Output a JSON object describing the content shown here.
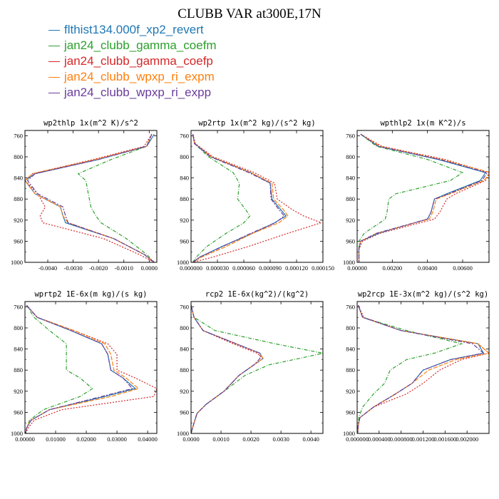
{
  "figure_title": "CLUBB VAR at300E,17N",
  "legend": [
    {
      "label": "flthist134.000f_xp2_revert",
      "color": "#1f77b4"
    },
    {
      "label": "jan24_clubb_gamma_coefm",
      "color": "#2ca02c"
    },
    {
      "label": "jan24_clubb_gamma_coefp",
      "color": "#d62728"
    },
    {
      "label": "jan24_clubb_wpxp_ri_expm",
      "color": "#ff7f0e"
    },
    {
      "label": "jan24_clubb_wpxp_ri_expp",
      "color": "#6a3d9a"
    }
  ],
  "chart_data": [
    {
      "type": "line",
      "title": "wp2thlp  1x(m^2 K)/s^2",
      "xlim": [
        -0.0049,
        0.0003
      ],
      "ylim": [
        1000,
        750
      ],
      "xticks": [
        -0.004,
        -0.003,
        -0.002,
        -0.001,
        0.0
      ],
      "xtick_labels": [
        "-0.0040",
        "-0.0030",
        "-0.0020",
        "-0.0010",
        "0.0000"
      ],
      "yticks": [
        760,
        800,
        840,
        880,
        920,
        960,
        1000
      ],
      "y": [
        757,
        780,
        805,
        832,
        845,
        870,
        895,
        912,
        925,
        955,
        985,
        1000
      ],
      "series": [
        {
          "values": [
            0.0002,
            -0.0001,
            -0.002,
            -0.0045,
            -0.0049,
            -0.0045,
            -0.0035,
            -0.0034,
            -0.0033,
            -0.0014,
            -0.0002,
            0.0002
          ]
        },
        {
          "values": [
            0.0001,
            -0.0001,
            -0.0015,
            -0.0028,
            -0.0025,
            -0.0024,
            -0.0023,
            -0.0021,
            -0.0019,
            -0.0009,
            -0.0001,
            0.0002
          ]
        },
        {
          "values": [
            0.0001,
            -0.0002,
            -0.0022,
            -0.0046,
            -0.0049,
            -0.0044,
            -0.0041,
            -0.0043,
            -0.0042,
            -0.0018,
            -0.0004,
            0.0002
          ]
        },
        {
          "values": [
            0.0001,
            -0.0001,
            -0.0021,
            -0.0046,
            -0.0049,
            -0.0045,
            -0.0035,
            -0.0034,
            -0.0032,
            -0.0014,
            -0.0002,
            0.0002
          ]
        },
        {
          "values": [
            0.0001,
            -0.0001,
            -0.002,
            -0.0045,
            -0.0048,
            -0.0044,
            -0.0034,
            -0.0033,
            -0.0032,
            -0.0014,
            -0.0002,
            0.0002
          ]
        }
      ]
    },
    {
      "type": "line",
      "title": "wp2rtp  1x(m^2 kg)/(s^2 kg)",
      "xlim": [
        0.0,
        0.00015
      ],
      "ylim": [
        1000,
        750
      ],
      "xticks": [
        0.0,
        3e-05,
        6e-05,
        9e-05,
        0.00012,
        0.00015
      ],
      "xtick_labels": [
        "0.000000",
        "0.000030",
        "0.000060",
        "0.000090",
        "0.000120",
        "0.000150"
      ],
      "yticks": [
        760,
        800,
        840,
        880,
        920,
        960,
        1000
      ],
      "y": [
        757,
        775,
        800,
        830,
        850,
        880,
        900,
        912,
        925,
        945,
        970,
        990,
        1000
      ],
      "series": [
        {
          "values": [
            2e-06,
            4e-06,
            2.3e-05,
            6.8e-05,
            9e-05,
            9.2e-05,
            0.000102,
            0.000108,
            9.5e-05,
            7e-05,
            3.5e-05,
            1e-05,
            2e-06
          ]
        },
        {
          "values": [
            2e-06,
            4e-06,
            2e-05,
            4.8e-05,
            5.5e-05,
            5.3e-05,
            6.2e-05,
            6.7e-05,
            6e-05,
            4e-05,
            1.8e-05,
            6e-06,
            2e-06
          ]
        },
        {
          "values": [
            2e-06,
            5e-06,
            2.5e-05,
            7.2e-05,
            9.5e-05,
            9.8e-05,
            0.000115,
            0.000128,
            0.000148,
            0.00011,
            6.5e-05,
            2.5e-05,
            2e-06
          ]
        },
        {
          "values": [
            2e-06,
            4e-06,
            2.3e-05,
            6.8e-05,
            9.2e-05,
            9.4e-05,
            0.000105,
            0.00011,
            0.0001,
            7e-05,
            4e-05,
            1.2e-05,
            2e-06
          ]
        },
        {
          "values": [
            2e-06,
            4e-06,
            2.2e-05,
            6.6e-05,
            9e-05,
            9.1e-05,
            0.0001,
            0.000106,
            9.6e-05,
            6.8e-05,
            3.6e-05,
            1e-05,
            2e-06
          ]
        }
      ]
    },
    {
      "type": "line",
      "title": "wpthlp2  1x(m K^2)/s",
      "xlim": [
        0.0,
        0.0075
      ],
      "ylim": [
        1000,
        750
      ],
      "xticks": [
        0.0,
        0.002,
        0.004,
        0.006
      ],
      "xtick_labels": [
        "0.00000",
        "0.00200",
        "0.00400",
        "0.00600"
      ],
      "yticks": [
        760,
        800,
        840,
        880,
        920,
        960,
        1000
      ],
      "y": [
        757,
        780,
        805,
        830,
        845,
        870,
        880,
        905,
        918,
        945,
        960,
        975,
        1000
      ],
      "series": [
        {
          "values": [
            0.0002,
            0.0012,
            0.0046,
            0.0073,
            0.007,
            0.0051,
            0.0044,
            0.0042,
            0.004,
            0.0012,
            0.0002,
            0.0001,
            0.0001
          ]
        },
        {
          "values": [
            0.0002,
            0.0011,
            0.004,
            0.006,
            0.0053,
            0.0022,
            0.0018,
            0.0017,
            0.0016,
            0.0004,
            0.0001,
            0.0001,
            0.0001
          ]
        },
        {
          "values": [
            0.0002,
            0.0014,
            0.005,
            0.0075,
            0.0073,
            0.0056,
            0.0051,
            0.0047,
            0.0044,
            0.0013,
            0.0003,
            0.0001,
            0.0001
          ]
        },
        {
          "values": [
            0.0002,
            0.0013,
            0.0048,
            0.0076,
            0.0072,
            0.0053,
            0.0045,
            0.0043,
            0.0041,
            0.0011,
            0.0002,
            0.0001,
            0.0001
          ]
        },
        {
          "values": [
            0.0002,
            0.0012,
            0.0047,
            0.0074,
            0.0071,
            0.0052,
            0.0044,
            0.0042,
            0.004,
            0.0011,
            0.0002,
            0.0001,
            0.0001
          ]
        }
      ]
    },
    {
      "type": "line",
      "title": "wprtp2  1E-6x(m kg)/(s kg)",
      "xlim": [
        0.0,
        0.043
      ],
      "ylim": [
        1000,
        750
      ],
      "xticks": [
        0.0,
        0.01,
        0.02,
        0.03,
        0.04
      ],
      "xtick_labels": [
        "0.00000",
        "0.01000",
        "0.02000",
        "0.03000",
        "0.04000"
      ],
      "yticks": [
        760,
        800,
        840,
        880,
        920,
        960,
        1000
      ],
      "y": [
        757,
        780,
        805,
        830,
        850,
        880,
        895,
        915,
        930,
        955,
        975,
        990,
        1000
      ],
      "series": [
        {
          "values": [
            0.0005,
            0.004,
            0.015,
            0.025,
            0.027,
            0.028,
            0.032,
            0.036,
            0.026,
            0.008,
            0.002,
            0.0005,
            0.0002
          ]
        },
        {
          "values": [
            0.0005,
            0.003,
            0.008,
            0.0135,
            0.0135,
            0.0135,
            0.018,
            0.022,
            0.018,
            0.006,
            0.0015,
            0.0005,
            0.0002
          ]
        },
        {
          "values": [
            0.0005,
            0.004,
            0.016,
            0.027,
            0.03,
            0.03,
            0.036,
            0.043,
            0.042,
            0.012,
            0.003,
            0.001,
            0.0002
          ]
        },
        {
          "values": [
            0.0005,
            0.004,
            0.016,
            0.026,
            0.028,
            0.029,
            0.033,
            0.037,
            0.028,
            0.008,
            0.002,
            0.0005,
            0.0002
          ]
        },
        {
          "values": [
            0.0005,
            0.004,
            0.015,
            0.025,
            0.027,
            0.028,
            0.032,
            0.035,
            0.025,
            0.008,
            0.002,
            0.0005,
            0.0002
          ]
        }
      ]
    },
    {
      "type": "line",
      "title": "rcp2  1E-6x(kg^2)/(kg^2)",
      "xlim": [
        0.0,
        0.0044
      ],
      "ylim": [
        1000,
        750
      ],
      "xticks": [
        0.0,
        0.001,
        0.002,
        0.003,
        0.004
      ],
      "xtick_labels": [
        "0.0000",
        "0.0010",
        "0.0020",
        "0.0030",
        "0.0040"
      ],
      "yticks": [
        760,
        800,
        840,
        880,
        920,
        960,
        1000
      ],
      "y": [
        757,
        780,
        805,
        830,
        848,
        858,
        870,
        890,
        920,
        945,
        962,
        980,
        1000
      ],
      "series": [
        {
          "values": [
            0.0,
            0.0001,
            0.0004,
            0.0015,
            0.0023,
            0.0024,
            0.0021,
            0.0016,
            0.0011,
            0.0005,
            0.0002,
            0.0001,
            0.0
          ]
        },
        {
          "values": [
            0.0,
            0.0001,
            0.0008,
            0.0028,
            0.0044,
            0.0036,
            0.0026,
            0.0018,
            0.0011,
            0.0005,
            0.0002,
            0.0001,
            0.0
          ]
        },
        {
          "values": [
            0.0,
            0.0001,
            0.0004,
            0.0014,
            0.0022,
            0.0024,
            0.0021,
            0.0016,
            0.0011,
            0.0005,
            0.0002,
            0.0001,
            0.0
          ]
        },
        {
          "values": [
            0.0,
            0.0001,
            0.0004,
            0.0015,
            0.0023,
            0.0024,
            0.0021,
            0.0016,
            0.0011,
            0.0005,
            0.0002,
            0.0001,
            0.0
          ]
        },
        {
          "values": [
            0.0,
            0.0001,
            0.0004,
            0.0015,
            0.0023,
            0.0023,
            0.0021,
            0.0016,
            0.0011,
            0.0005,
            0.0002,
            0.0001,
            0.0
          ]
        }
      ]
    },
    {
      "type": "line",
      "title": "wp2rcp  1E-3x(m^2 kg)/(s^2 kg)",
      "xlim": [
        0.0,
        0.0024
      ],
      "ylim": [
        1000,
        750
      ],
      "xticks": [
        0.0,
        0.0004,
        0.0008,
        0.0012,
        0.0016,
        0.002
      ],
      "xtick_labels": [
        "0.000000",
        "0.000400",
        "0.000800",
        "0.001200",
        "0.001600",
        "0.002000"
      ],
      "yticks": [
        760,
        800,
        840,
        880,
        920,
        960,
        1000
      ],
      "y": [
        757,
        780,
        805,
        830,
        848,
        860,
        880,
        905,
        925,
        950,
        970,
        985,
        1000
      ],
      "series": [
        {
          "values": [
            2e-05,
            0.0001,
            0.0008,
            0.0022,
            0.0023,
            0.0017,
            0.0012,
            0.001,
            0.0007,
            0.0003,
            5e-05,
            2e-05,
            1e-05
          ]
        },
        {
          "values": [
            2e-05,
            0.0001,
            0.0009,
            0.0019,
            0.0014,
            0.0009,
            0.0006,
            0.0005,
            0.0003,
            0.0001,
            3e-05,
            2e-05,
            1e-05
          ]
        },
        {
          "values": [
            2e-05,
            0.00012,
            0.0008,
            0.0022,
            0.0024,
            0.0019,
            0.0015,
            0.0012,
            0.0009,
            0.0003,
            5e-05,
            2e-05,
            1e-05
          ]
        },
        {
          "values": [
            2e-05,
            0.0001,
            0.0008,
            0.0022,
            0.0024,
            0.0018,
            0.0013,
            0.001,
            0.0007,
            0.0003,
            5e-05,
            2e-05,
            1e-05
          ]
        },
        {
          "values": [
            2e-05,
            0.0001,
            0.0008,
            0.0021,
            0.0023,
            0.0017,
            0.0012,
            0.001,
            0.0007,
            0.0003,
            5e-05,
            2e-05,
            1e-05
          ]
        }
      ]
    }
  ]
}
